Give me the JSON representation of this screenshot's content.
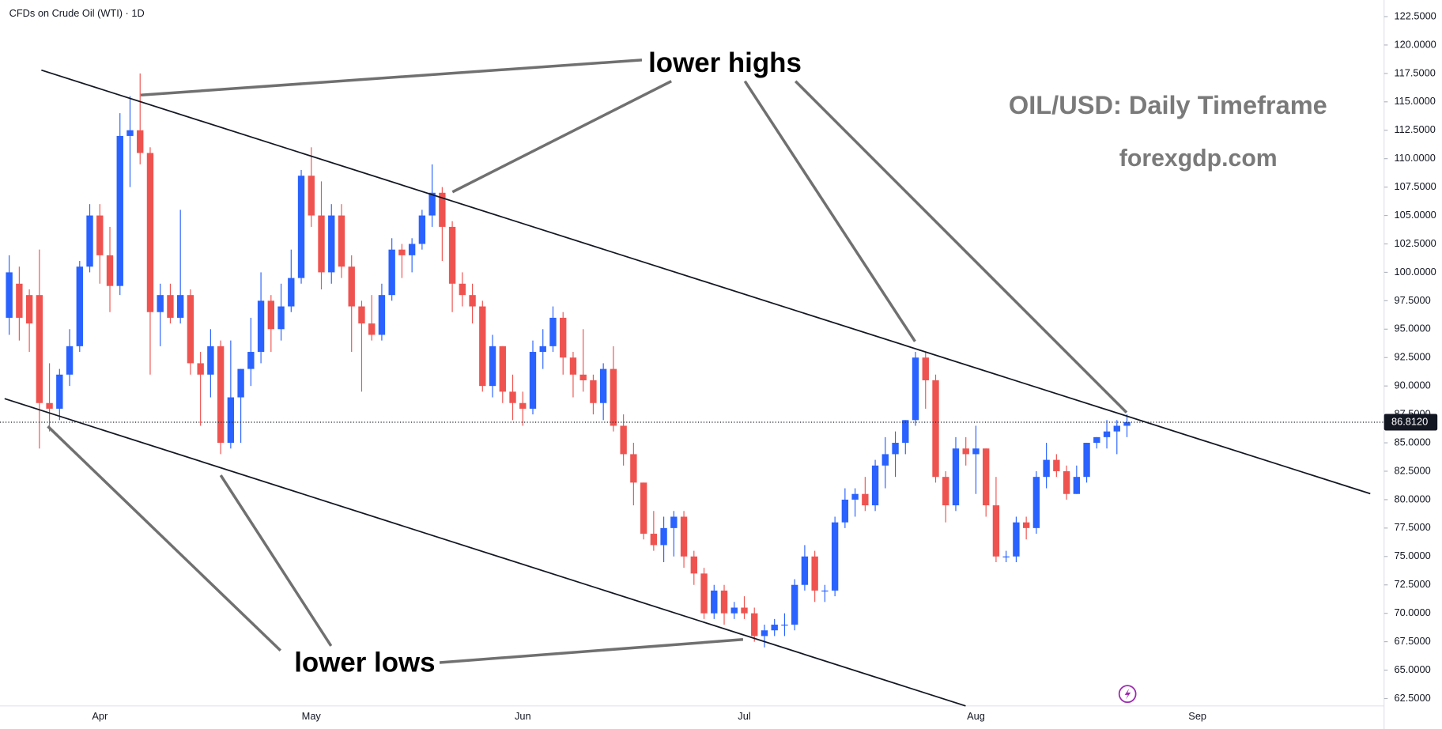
{
  "chart_data": {
    "type": "candlestick",
    "title": "CFDs on Crude Oil (WTI) · 1D",
    "annotations": [
      "lower highs",
      "lower lows",
      "OIL/USD: Daily Timeframe",
      "forexgdp.com"
    ],
    "categories": [
      null,
      null,
      null,
      null,
      null,
      null,
      null,
      null,
      null,
      "Apr",
      null,
      null,
      null,
      null,
      null,
      null,
      null,
      null,
      null,
      null,
      null,
      null,
      null,
      null,
      null,
      null,
      null,
      null,
      null,
      null,
      "May",
      null,
      null,
      null,
      null,
      null,
      null,
      null,
      null,
      null,
      null,
      null,
      null,
      null,
      null,
      null,
      null,
      null,
      null,
      null,
      null,
      "Jun",
      null,
      null,
      null,
      null,
      null,
      null,
      null,
      null,
      null,
      null,
      null,
      null,
      null,
      null,
      null,
      null,
      null,
      null,
      null,
      null,
      null,
      "Jul",
      null,
      null,
      null,
      null,
      null,
      null,
      null,
      null,
      null,
      null,
      null,
      null,
      null,
      null,
      null,
      null,
      null,
      null,
      null,
      null,
      null,
      null,
      "Aug",
      null,
      null,
      null,
      null,
      null,
      null,
      null,
      null,
      null,
      null,
      null,
      null,
      null,
      null,
      null,
      null,
      null,
      null,
      null,
      null,
      null,
      "Sep"
    ],
    "open": [
      96,
      99,
      98,
      98,
      88.5,
      88,
      91,
      93.5,
      100.5,
      105,
      101.5,
      98.8,
      112,
      112.5,
      110.5,
      96.5,
      98,
      96,
      98,
      92,
      91,
      93.5,
      85,
      89,
      91.5,
      93,
      97.5,
      95,
      97,
      99.5,
      108.5,
      105,
      100,
      105,
      100.5,
      97,
      95.5,
      94.5,
      98,
      102,
      101.5,
      102.5,
      105,
      107,
      104,
      99,
      98,
      97,
      90,
      93.5,
      89.5,
      88.5,
      88,
      93,
      93.5,
      96,
      92.5,
      91,
      90.5,
      88.5,
      91.5,
      86.5,
      84,
      81.5,
      77,
      76,
      77.5,
      78.5,
      75,
      73.5,
      70,
      72,
      70,
      70.5,
      70,
      68,
      68.5,
      69,
      69,
      72.5,
      75,
      72,
      72,
      78,
      80,
      80.5,
      79.5,
      83,
      84,
      85,
      87,
      92.5,
      90.5,
      82,
      79.5,
      84.5,
      84,
      84.5,
      79.5,
      75,
      75,
      78,
      77.5,
      82,
      83.5,
      82.5,
      80.5,
      82,
      85,
      85.5,
      86,
      86.5,
      null,
      null,
      null,
      null,
      null,
      null,
      null
    ],
    "high": [
      101.5,
      100.5,
      98.5,
      102,
      92,
      91.5,
      95,
      101,
      106,
      106,
      104,
      114,
      115.5,
      117.5,
      111,
      99,
      99,
      105.5,
      98.5,
      93,
      95,
      94,
      94,
      91.5,
      96,
      100,
      98,
      99,
      102,
      109,
      111,
      108,
      106,
      106,
      101.5,
      97.5,
      98,
      99,
      103,
      102.5,
      103,
      105.5,
      109.5,
      107.5,
      104.5,
      100,
      99,
      97.5,
      94.5,
      93.5,
      91,
      89.5,
      94,
      95,
      97,
      96.5,
      93,
      95,
      91,
      92,
      93.5,
      87.5,
      85,
      81.5,
      79,
      78.5,
      79,
      79,
      75.5,
      74,
      72.5,
      72.5,
      71,
      71.5,
      70.5,
      69,
      69.5,
      70,
      73,
      76,
      75.5,
      72.5,
      78.5,
      81,
      81,
      82,
      83.5,
      85.5,
      86,
      87,
      93,
      93,
      91,
      82.5,
      85.5,
      85.5,
      86.5,
      84.5,
      82,
      75.5,
      78.5,
      78.5,
      82.5,
      85,
      84,
      83,
      83,
      85,
      85.5,
      87,
      87,
      87.5,
      null,
      null,
      null,
      null,
      null,
      null,
      null
    ],
    "low": [
      94.5,
      94,
      93,
      84.5,
      86,
      87,
      90,
      93,
      100,
      99,
      96.5,
      98,
      107.5,
      109.5,
      91,
      93.5,
      95.5,
      95.5,
      91,
      86.5,
      89,
      84,
      84.5,
      85,
      90,
      92,
      93,
      94,
      96.5,
      99,
      104,
      98.5,
      99,
      99.5,
      93,
      89.5,
      94,
      94,
      97.5,
      99.5,
      100,
      102,
      104,
      101,
      96.5,
      97,
      95.5,
      89.5,
      89,
      88.5,
      87,
      86.5,
      87.5,
      91.5,
      93,
      91,
      89,
      89.5,
      87.5,
      87,
      86,
      83,
      79.5,
      76.5,
      75.5,
      74.5,
      75,
      74,
      72.5,
      69.5,
      69.5,
      69,
      69.5,
      69.5,
      67.5,
      67,
      68,
      68,
      68.5,
      72,
      71,
      71,
      71.5,
      77.5,
      78.5,
      79,
      79,
      81,
      82,
      84,
      86.5,
      88,
      81.5,
      78,
      79,
      83,
      80.5,
      78.5,
      74.5,
      74.5,
      74.5,
      76.5,
      77,
      81,
      82,
      80,
      80.5,
      81.5,
      84.5,
      84.5,
      84,
      85.5,
      null,
      null,
      null,
      null,
      null,
      null,
      null
    ],
    "close": [
      100,
      96,
      95.5,
      88.5,
      88,
      91,
      93.5,
      100.5,
      105,
      101.5,
      98.8,
      112,
      112.5,
      110.5,
      96.5,
      98,
      96,
      98,
      92,
      91,
      93.5,
      85,
      89,
      91.5,
      93,
      97.5,
      95,
      97,
      99.5,
      108.5,
      105,
      100,
      105,
      100.5,
      97,
      95.5,
      94.5,
      98,
      102,
      101.5,
      102.5,
      105,
      107,
      104,
      99,
      98,
      97,
      90,
      93.5,
      89.5,
      88.5,
      88,
      93,
      93.5,
      96,
      92.5,
      91,
      90.5,
      88.5,
      91.5,
      86.5,
      84,
      81.5,
      77,
      76,
      77.5,
      78.5,
      75,
      73.5,
      70,
      72,
      70,
      70.5,
      70,
      68,
      68.5,
      69,
      69,
      72.5,
      75,
      72,
      72,
      78,
      80,
      80.5,
      79.5,
      83,
      84,
      85,
      87,
      92.5,
      90.5,
      82,
      79.5,
      84.5,
      84,
      84.5,
      79.5,
      75,
      75,
      78,
      77.5,
      82,
      83.5,
      82.5,
      80.5,
      82,
      85,
      85.5,
      86,
      86.5,
      86.81,
      null,
      null,
      null,
      null,
      null,
      null,
      null
    ],
    "up_color": "#2962ff",
    "down_color": "#ef5350",
    "last_price": {
      "value": 86.812,
      "label": "86.8120"
    },
    "ylim": [
      61.85,
      123.96
    ],
    "yticks": [
      {
        "value": 62.5,
        "label": "62.5000"
      },
      {
        "value": 65,
        "label": "65.0000"
      },
      {
        "value": 67.5,
        "label": "67.5000"
      },
      {
        "value": 70,
        "label": "70.0000"
      },
      {
        "value": 72.5,
        "label": "72.5000"
      },
      {
        "value": 75,
        "label": "75.0000"
      },
      {
        "value": 77.5,
        "label": "77.5000"
      },
      {
        "value": 80,
        "label": "80.0000"
      },
      {
        "value": 82.5,
        "label": "82.5000"
      },
      {
        "value": 85,
        "label": "85.0000"
      },
      {
        "value": 87.5,
        "label": "87.5000"
      },
      {
        "value": 90,
        "label": "90.0000"
      },
      {
        "value": 92.5,
        "label": "92.5000"
      },
      {
        "value": 95,
        "label": "95.0000"
      },
      {
        "value": 97.5,
        "label": "97.5000"
      },
      {
        "value": 100,
        "label": "100.0000"
      },
      {
        "value": 102.5,
        "label": "102.5000"
      },
      {
        "value": 105,
        "label": "105.0000"
      },
      {
        "value": 107.5,
        "label": "107.5000"
      },
      {
        "value": 110,
        "label": "110.0000"
      },
      {
        "value": 112.5,
        "label": "112.5000"
      },
      {
        "value": 115,
        "label": "115.0000"
      },
      {
        "value": 117.5,
        "label": "117.5000"
      },
      {
        "value": 120,
        "label": "120.0000"
      },
      {
        "value": 122.5,
        "label": "122.5000"
      }
    ],
    "grid": false
  }
}
